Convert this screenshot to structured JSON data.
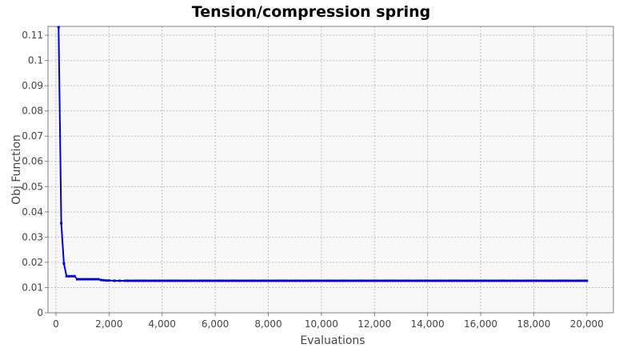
{
  "chart_data": {
    "type": "line",
    "title": "Tension/compression spring",
    "xlabel": "Evaluations",
    "ylabel": "Obj Function",
    "xlim": [
      -300,
      21000
    ],
    "ylim": [
      0,
      0.1135
    ],
    "x_ticks": [
      0,
      2000,
      4000,
      6000,
      8000,
      10000,
      12000,
      14000,
      16000,
      18000,
      20000
    ],
    "x_tick_labels": [
      "0",
      "2,000",
      "4,000",
      "6,000",
      "8,000",
      "10,000",
      "12,000",
      "14,000",
      "16,000",
      "18,000",
      "20,000"
    ],
    "y_ticks": [
      0,
      0.01,
      0.02,
      0.03,
      0.04,
      0.05,
      0.06,
      0.07,
      0.08,
      0.09,
      0.1,
      0.11
    ],
    "y_tick_labels": [
      "0",
      "0.01",
      "0.02",
      "0.03",
      "0.04",
      "0.05",
      "0.06",
      "0.07",
      "0.08",
      "0.09",
      "0.1",
      "0.11"
    ],
    "grid": true,
    "legend": "none",
    "series": [
      {
        "color": "#0000dd",
        "x": [
          100,
          200,
          300,
          400,
          500,
          600,
          700,
          800,
          900,
          1000,
          1100,
          1200,
          1300,
          1400,
          1500,
          1600,
          1700,
          1800,
          1900,
          2000,
          2200,
          2400,
          2600
        ],
        "y": [
          0.1132,
          0.0355,
          0.0195,
          0.0145,
          0.0145,
          0.0145,
          0.0145,
          0.0133,
          0.0133,
          0.0133,
          0.0133,
          0.0133,
          0.0133,
          0.0133,
          0.0133,
          0.0133,
          0.013,
          0.0129,
          0.0128,
          0.0128,
          0.0127,
          0.0127,
          0.0127
        ],
        "tail_y": 0.0127,
        "tail_end_x": 20000,
        "tail_step": 100
      }
    ]
  },
  "colors": {
    "plot_background": "#f8f8f8",
    "grid": "#c0c0c0",
    "frame": "#808080",
    "line": "#0000dd"
  }
}
